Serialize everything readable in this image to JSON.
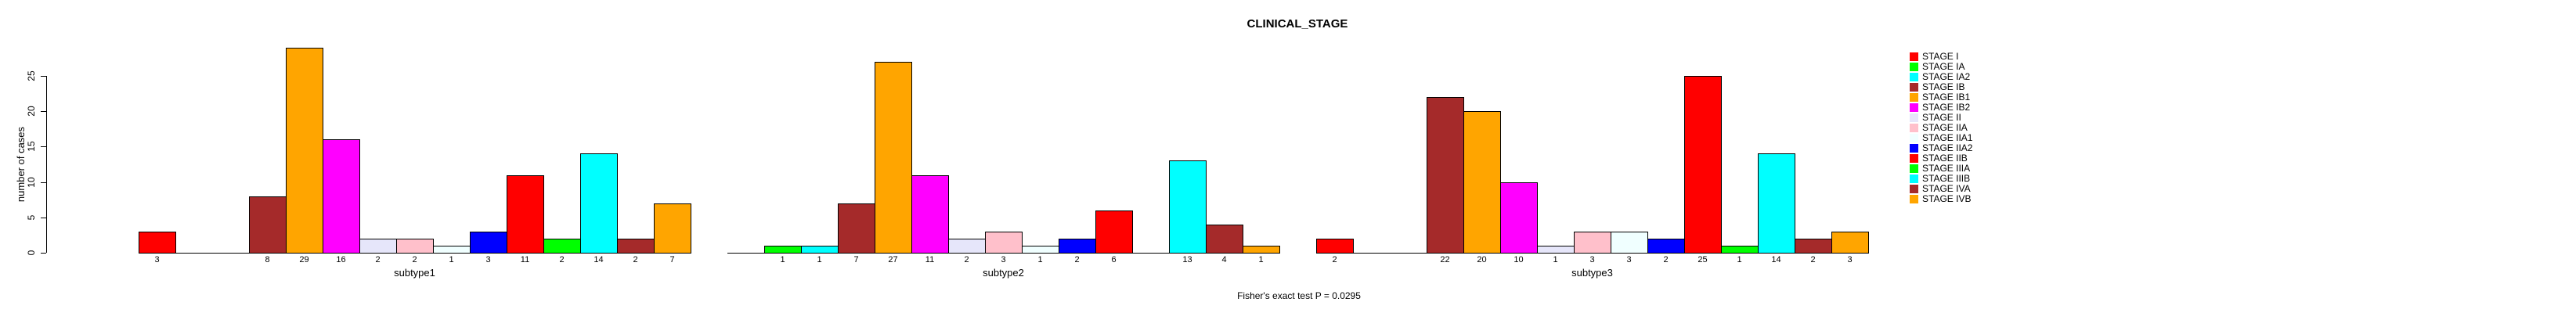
{
  "title": "CLINICAL_STAGE",
  "footer": "Fisher's exact test P = 0.0295",
  "y_axis": {
    "label": "number of cases",
    "ticks": [
      0,
      5,
      10,
      15,
      20,
      25
    ]
  },
  "chart_data": {
    "type": "bar",
    "title": "CLINICAL_STAGE",
    "xlabel": "",
    "ylabel": "number of cases",
    "ylim": [
      0,
      25
    ],
    "grid": false,
    "legend_position": "right",
    "annotation": "Fisher's exact test P = 0.0295",
    "bar_value_labels": "shown below axis for non-zero bars",
    "categories": [
      "STAGE I",
      "STAGE IA",
      "STAGE IA2",
      "STAGE IB",
      "STAGE IB1",
      "STAGE IB2",
      "STAGE II",
      "STAGE IIA",
      "STAGE IIA1",
      "STAGE IIA2",
      "STAGE IIB",
      "STAGE IIIA",
      "STAGE IIIB",
      "STAGE IVA",
      "STAGE IVB"
    ],
    "colors": [
      "#FF0000",
      "#00FF00",
      "#00FFFF",
      "#A52A2A",
      "#FFA500",
      "#FF00FF",
      "#E6E6FA",
      "#FFC0CB",
      "#F0FFFF",
      "#0000FF",
      "#FF0000",
      "#00FF00",
      "#00FFFF",
      "#A52A2A",
      "#FFA500"
    ],
    "groups": [
      {
        "label": "subtype1",
        "values": [
          3,
          0,
          0,
          8,
          29,
          16,
          2,
          2,
          1,
          3,
          11,
          2,
          14,
          2,
          7
        ]
      },
      {
        "label": "subtype2",
        "values": [
          0,
          1,
          1,
          7,
          27,
          11,
          2,
          3,
          1,
          2,
          6,
          0,
          13,
          4,
          1
        ]
      },
      {
        "label": "subtype3",
        "values": [
          2,
          0,
          0,
          22,
          20,
          10,
          1,
          3,
          3,
          2,
          25,
          1,
          14,
          2,
          3
        ]
      }
    ]
  }
}
